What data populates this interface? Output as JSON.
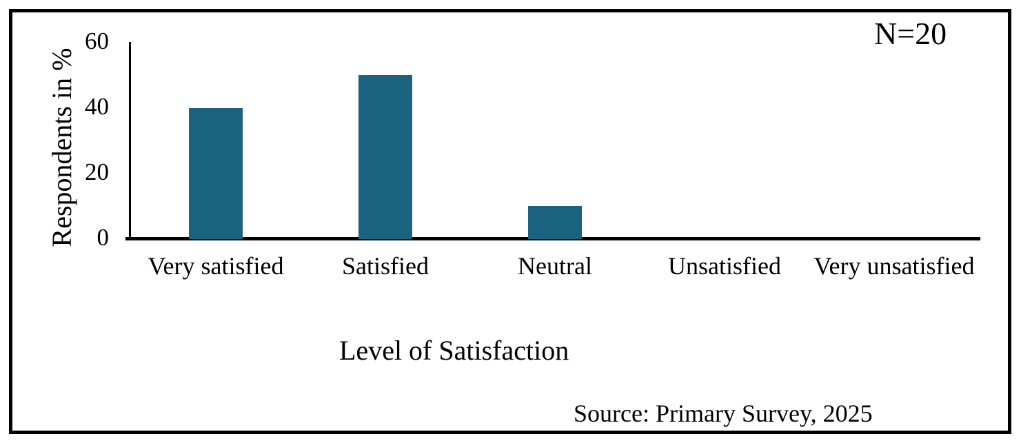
{
  "chart": {
    "annotation": "N=20",
    "source": "Source: Primary Survey, 2025"
  },
  "chart_data": {
    "type": "bar",
    "categories": [
      "Very satisfied",
      "Satisfied",
      "Neutral",
      "Unsatisfied",
      "Very unsatisfied"
    ],
    "values": [
      40,
      50,
      10,
      0,
      0
    ],
    "title": "",
    "xlabel": "Level of Satisfaction",
    "ylabel": "Respondents in %",
    "ylim": [
      0,
      60
    ],
    "yticks": [
      0,
      20,
      40,
      60
    ],
    "bar_color": "#1A6380",
    "axis_color": "#000000",
    "annotation": "N=20",
    "source": "Source: Primary Survey, 2025",
    "grid": false,
    "legend": "none"
  }
}
